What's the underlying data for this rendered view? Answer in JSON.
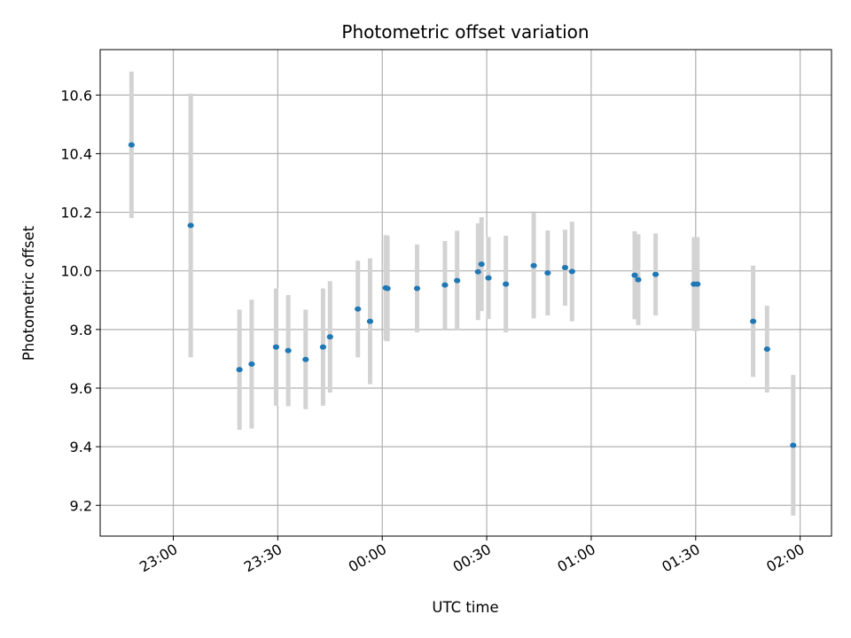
{
  "chart_data": {
    "type": "scatter",
    "title": "Photometric offset variation",
    "xlabel": "UTC time",
    "ylabel": "Photometric offset",
    "grid": true,
    "x_tick_labels": [
      "23:00",
      "23:30",
      "00:00",
      "00:30",
      "01:00",
      "01:30",
      "02:00"
    ],
    "x_tick_minutes": [
      -60,
      -30,
      0,
      30,
      60,
      90,
      120
    ],
    "xlim": [
      -81,
      129
    ],
    "y_ticks": [
      9.2,
      9.4,
      9.6,
      9.8,
      10.0,
      10.2,
      10.4,
      10.6
    ],
    "ylim": [
      9.095,
      10.755
    ],
    "colors": {
      "point": "#1f77b4",
      "errorbar": "#d3d3d3",
      "grid": "#b0b0b0"
    },
    "points": [
      {
        "x": -72,
        "y": 10.43,
        "err": 0.25
      },
      {
        "x": -55,
        "y": 10.155,
        "err": 0.45
      },
      {
        "x": -41,
        "y": 9.663,
        "err": 0.205
      },
      {
        "x": -37.5,
        "y": 9.682,
        "err": 0.22
      },
      {
        "x": -30.5,
        "y": 9.74,
        "err": 0.2
      },
      {
        "x": -27,
        "y": 9.728,
        "err": 0.19
      },
      {
        "x": -22,
        "y": 9.698,
        "err": 0.17
      },
      {
        "x": -17,
        "y": 9.74,
        "err": 0.2
      },
      {
        "x": -15,
        "y": 9.775,
        "err": 0.19
      },
      {
        "x": -7,
        "y": 9.87,
        "err": 0.165
      },
      {
        "x": -3.5,
        "y": 9.828,
        "err": 0.215
      },
      {
        "x": 1,
        "y": 9.942,
        "err": 0.18
      },
      {
        "x": 1.5,
        "y": 9.94,
        "err": 0.18
      },
      {
        "x": 10,
        "y": 9.94,
        "err": 0.15
      },
      {
        "x": 18,
        "y": 9.952,
        "err": 0.15
      },
      {
        "x": 21.5,
        "y": 9.967,
        "err": 0.17
      },
      {
        "x": 27.5,
        "y": 9.997,
        "err": 0.165
      },
      {
        "x": 28.5,
        "y": 10.023,
        "err": 0.16
      },
      {
        "x": 30.5,
        "y": 9.976,
        "err": 0.14
      },
      {
        "x": 35.5,
        "y": 9.955,
        "err": 0.165
      },
      {
        "x": 43.5,
        "y": 10.018,
        "err": 0.18
      },
      {
        "x": 47.5,
        "y": 9.993,
        "err": 0.145
      },
      {
        "x": 52.5,
        "y": 10.011,
        "err": 0.13
      },
      {
        "x": 54.5,
        "y": 9.998,
        "err": 0.17
      },
      {
        "x": 72.5,
        "y": 9.985,
        "err": 0.15
      },
      {
        "x": 73.5,
        "y": 9.97,
        "err": 0.155
      },
      {
        "x": 78.5,
        "y": 9.988,
        "err": 0.14
      },
      {
        "x": 89.5,
        "y": 9.955,
        "err": 0.16
      },
      {
        "x": 90.5,
        "y": 9.955,
        "err": 0.16
      },
      {
        "x": 106.5,
        "y": 9.828,
        "err": 0.19
      },
      {
        "x": 110.5,
        "y": 9.733,
        "err": 0.148
      },
      {
        "x": 118,
        "y": 9.405,
        "err": 0.24
      }
    ]
  }
}
